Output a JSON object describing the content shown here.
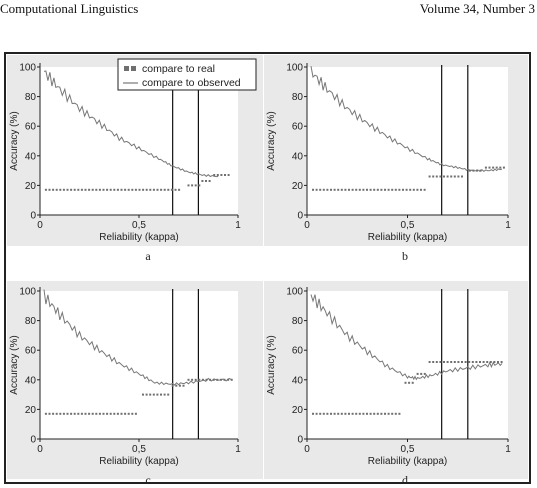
{
  "header": {
    "journal": "Computational Linguistics",
    "volume": "Volume 34, Number 3"
  },
  "legend": {
    "dots_label": "compare to real",
    "line_label": "compare to observed"
  },
  "colors": {
    "line": "#777777",
    "dots": "#6f6f6f",
    "threshold": "#111111",
    "panel_bg": "#e9e9e9"
  },
  "chart_data": [
    {
      "type": "scatter",
      "panel": "a",
      "xlabel": "Reliability (kappa)",
      "ylabel": "Accuracy (%)",
      "xlim": [
        0,
        1
      ],
      "ylim": [
        0,
        100
      ],
      "xticks": [
        "0",
        "0,5",
        "1"
      ],
      "yticks": [
        "0",
        "20",
        "40",
        "60",
        "80",
        "100"
      ],
      "thresholds": [
        0.67,
        0.8
      ],
      "series": [
        {
          "name": "compare to observed",
          "kind": "line",
          "x": [
            0.02,
            0.1,
            0.2,
            0.3,
            0.4,
            0.5,
            0.6,
            0.67,
            0.75,
            0.82,
            0.9
          ],
          "y": [
            97,
            85,
            72,
            62,
            52,
            45,
            38,
            33,
            29,
            27,
            26
          ]
        },
        {
          "name": "compare to real",
          "kind": "dots",
          "segments": [
            {
              "x0": 0.03,
              "x1": 0.72,
              "y": 17
            },
            {
              "x0": 0.75,
              "x1": 0.81,
              "y": 20
            },
            {
              "x0": 0.82,
              "x1": 0.87,
              "y": 23
            },
            {
              "x0": 0.88,
              "x1": 0.97,
              "y": 27
            }
          ]
        }
      ]
    },
    {
      "type": "scatter",
      "panel": "b",
      "xlabel": "Reliability (kappa)",
      "ylabel": "Accuracy (%)",
      "xlim": [
        0,
        1
      ],
      "ylim": [
        0,
        100
      ],
      "xticks": [
        "0",
        "0,5",
        "1"
      ],
      "yticks": [
        "0",
        "20",
        "40",
        "60",
        "80",
        "100"
      ],
      "thresholds": [
        0.67,
        0.8
      ],
      "series": [
        {
          "name": "compare to observed",
          "kind": "line",
          "x": [
            0.02,
            0.1,
            0.2,
            0.3,
            0.4,
            0.5,
            0.6,
            0.67,
            0.75,
            0.82,
            0.9,
            0.97
          ],
          "y": [
            97,
            85,
            72,
            62,
            53,
            45,
            38,
            34,
            32,
            30,
            30,
            31
          ]
        },
        {
          "name": "compare to real",
          "kind": "dots",
          "segments": [
            {
              "x0": 0.03,
              "x1": 0.6,
              "y": 17
            },
            {
              "x0": 0.61,
              "x1": 0.78,
              "y": 26
            },
            {
              "x0": 0.81,
              "x1": 0.88,
              "y": 30
            },
            {
              "x0": 0.89,
              "x1": 0.98,
              "y": 32
            }
          ]
        }
      ]
    },
    {
      "type": "scatter",
      "panel": "c",
      "xlabel": "Reliability (kappa)",
      "ylabel": "Accuracy (%)",
      "xlim": [
        0,
        1
      ],
      "ylim": [
        0,
        100
      ],
      "xticks": [
        "0",
        "0,5",
        "1"
      ],
      "yticks": [
        "0",
        "20",
        "40",
        "60",
        "80",
        "100"
      ],
      "thresholds": [
        0.67,
        0.8
      ],
      "series": [
        {
          "name": "compare to observed",
          "kind": "line",
          "x": [
            0.02,
            0.1,
            0.2,
            0.3,
            0.4,
            0.5,
            0.58,
            0.67,
            0.75,
            0.85,
            0.97
          ],
          "y": [
            97,
            84,
            70,
            60,
            51,
            44,
            38,
            37,
            38,
            40,
            40
          ]
        },
        {
          "name": "compare to real",
          "kind": "dots",
          "segments": [
            {
              "x0": 0.03,
              "x1": 0.5,
              "y": 17
            },
            {
              "x0": 0.52,
              "x1": 0.66,
              "y": 30
            },
            {
              "x0": 0.67,
              "x1": 0.74,
              "y": 36
            },
            {
              "x0": 0.75,
              "x1": 0.97,
              "y": 40
            }
          ]
        }
      ]
    },
    {
      "type": "scatter",
      "panel": "d",
      "xlabel": "Reliability (kappa)",
      "ylabel": "Accuracy (%)",
      "xlim": [
        0,
        1
      ],
      "ylim": [
        0,
        100
      ],
      "xticks": [
        "0",
        "0,5",
        "1"
      ],
      "yticks": [
        "0",
        "20",
        "40",
        "60",
        "80",
        "100"
      ],
      "thresholds": [
        0.67,
        0.8
      ],
      "series": [
        {
          "name": "compare to observed",
          "kind": "line",
          "x": [
            0.02,
            0.1,
            0.2,
            0.3,
            0.4,
            0.5,
            0.55,
            0.62,
            0.7,
            0.8,
            0.9,
            0.97
          ],
          "y": [
            97,
            85,
            70,
            59,
            49,
            42,
            41,
            43,
            46,
            48,
            50,
            51
          ]
        },
        {
          "name": "compare to real",
          "kind": "dots",
          "segments": [
            {
              "x0": 0.03,
              "x1": 0.47,
              "y": 17
            },
            {
              "x0": 0.49,
              "x1": 0.54,
              "y": 38
            },
            {
              "x0": 0.55,
              "x1": 0.6,
              "y": 44
            },
            {
              "x0": 0.61,
              "x1": 0.97,
              "y": 52
            }
          ]
        }
      ]
    }
  ]
}
